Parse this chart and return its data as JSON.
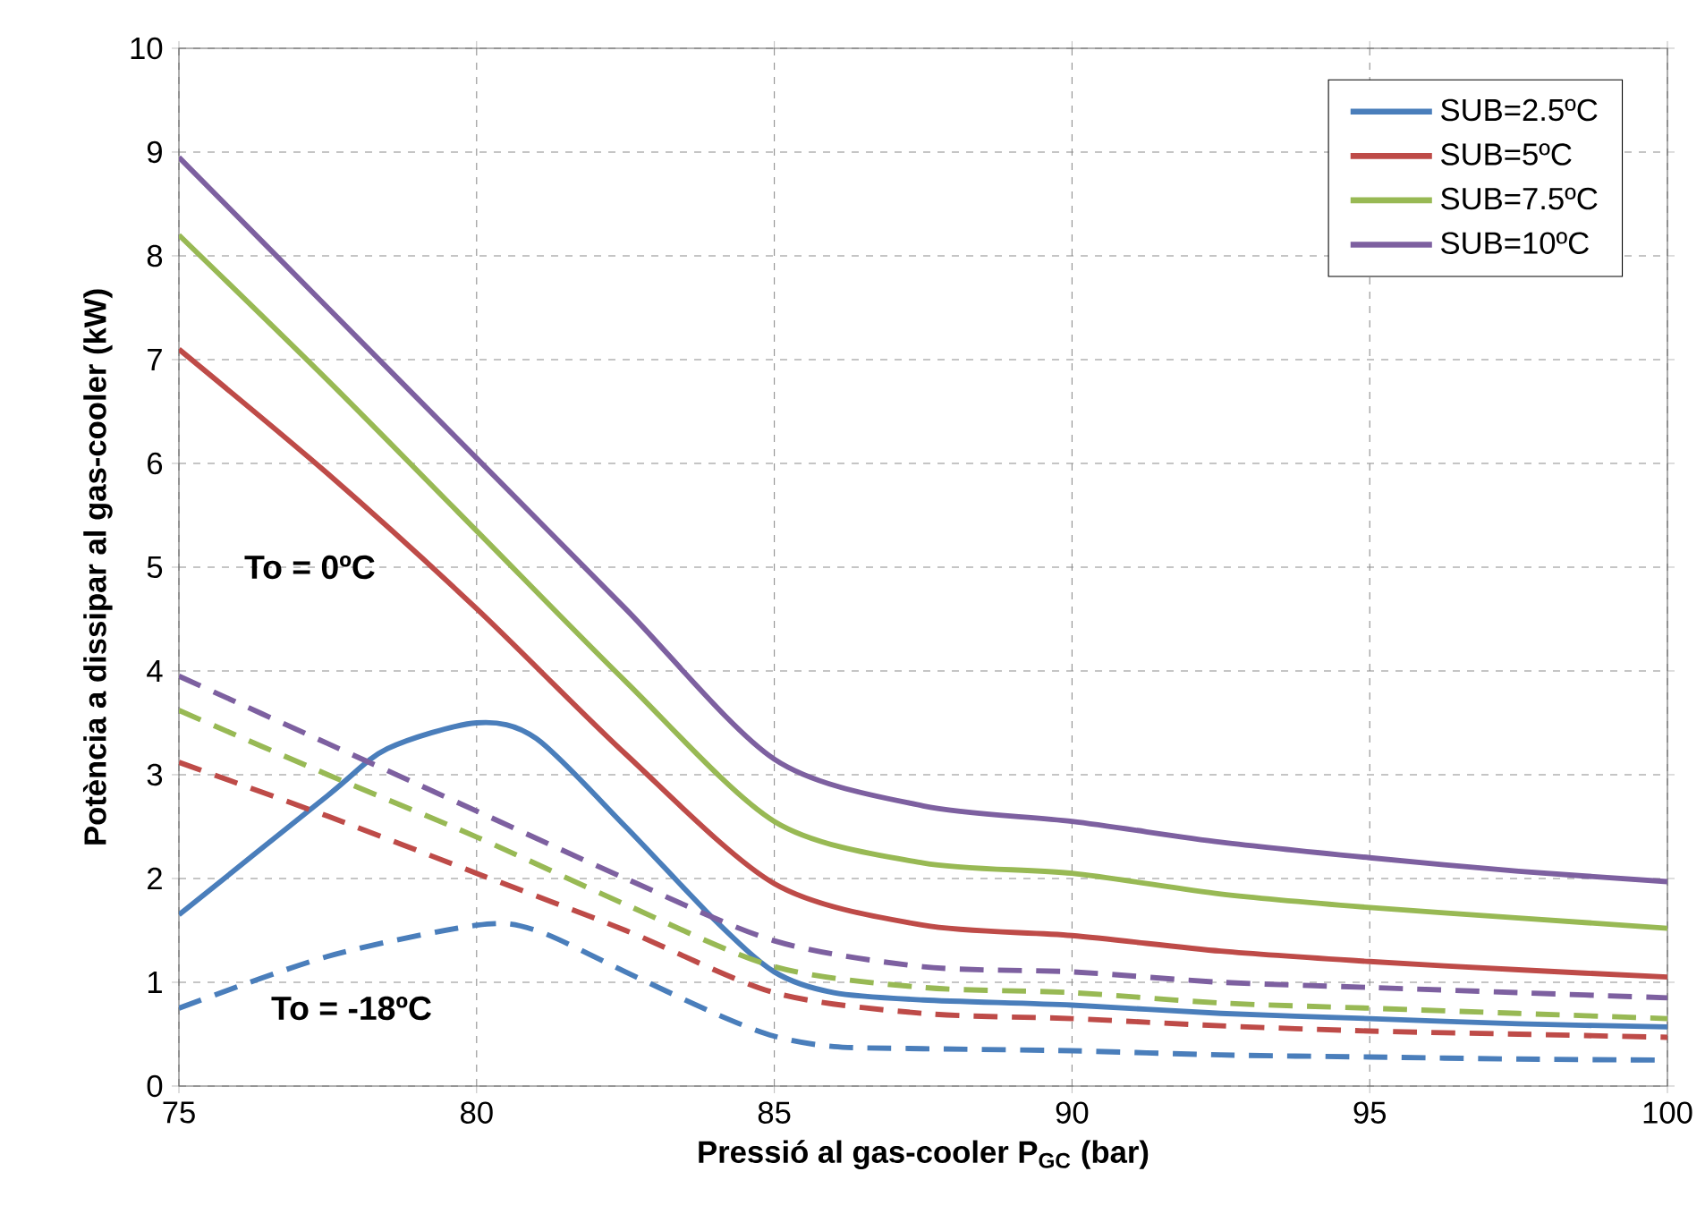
{
  "chart_data": {
    "type": "line",
    "xlabel": "Pressió al gas-cooler P$_{GC}$ (bar)",
    "ylabel": "Potència a dissipar al gas-cooler (kW)",
    "xlim": [
      75,
      100
    ],
    "ylim": [
      0,
      10
    ],
    "xticks": [
      75,
      80,
      85,
      90,
      95,
      100
    ],
    "yticks": [
      0,
      1,
      2,
      3,
      4,
      5,
      6,
      7,
      8,
      9,
      10
    ],
    "grid": true,
    "legend": "top right",
    "marker": "none",
    "annotations": [
      "To = 0ºC",
      "To = -18ºC"
    ],
    "series": [
      {
        "name": "SUB=2.5ºC",
        "color": "#4a7ebb",
        "line_style": "solid",
        "x": [
          75,
          77.5,
          78.5,
          80,
          81,
          82.5,
          84,
          85,
          86,
          87.5,
          90,
          92.5,
          95,
          97.5,
          100
        ],
        "values": [
          1.65,
          2.8,
          3.25,
          3.5,
          3.35,
          2.5,
          1.6,
          1.1,
          0.9,
          0.83,
          0.78,
          0.7,
          0.65,
          0.6,
          0.57
        ]
      },
      {
        "name": "SUB=5ºC",
        "color": "#be4b48",
        "line_style": "solid",
        "x": [
          75,
          77.5,
          80,
          82.5,
          85,
          87.5,
          90,
          92.5,
          95,
          97.5,
          100
        ],
        "values": [
          7.1,
          5.9,
          4.6,
          3.2,
          1.95,
          1.55,
          1.45,
          1.3,
          1.2,
          1.12,
          1.05
        ]
      },
      {
        "name": "SUB=7.5ºC",
        "color": "#98b954",
        "line_style": "solid",
        "x": [
          75,
          77.5,
          80,
          82.5,
          85,
          87.5,
          90,
          92.5,
          95,
          97.5,
          100
        ],
        "values": [
          8.2,
          6.8,
          5.35,
          3.9,
          2.55,
          2.15,
          2.05,
          1.85,
          1.72,
          1.62,
          1.52
        ]
      },
      {
        "name": "SUB=10ºC",
        "color": "#7d60a0",
        "line_style": "solid",
        "x": [
          75,
          77.5,
          80,
          82.5,
          85,
          87.5,
          90,
          92.5,
          95,
          97.5,
          100
        ],
        "values": [
          8.95,
          7.5,
          6.05,
          4.6,
          3.15,
          2.7,
          2.55,
          2.35,
          2.2,
          2.07,
          1.97
        ]
      },
      {
        "color": "#4a7ebb",
        "line_style": "dashed",
        "x": [
          75,
          77.5,
          80,
          81,
          82.5,
          84,
          85,
          86,
          87.5,
          90,
          92.5,
          95,
          97.5,
          100
        ],
        "values": [
          0.75,
          1.25,
          1.55,
          1.5,
          1.1,
          0.7,
          0.48,
          0.38,
          0.36,
          0.34,
          0.3,
          0.28,
          0.26,
          0.25
        ]
      },
      {
        "color": "#be4b48",
        "line_style": "dashed",
        "x": [
          75,
          77.5,
          80,
          82.5,
          85,
          87.5,
          90,
          92.5,
          95,
          97.5,
          100
        ],
        "values": [
          3.12,
          2.6,
          2.05,
          1.5,
          0.9,
          0.7,
          0.65,
          0.58,
          0.53,
          0.5,
          0.47
        ]
      },
      {
        "color": "#98b954",
        "line_style": "dashed",
        "x": [
          75,
          77.5,
          80,
          82.5,
          85,
          87.5,
          90,
          92.5,
          95,
          97.5,
          100
        ],
        "values": [
          3.62,
          3.0,
          2.4,
          1.75,
          1.15,
          0.95,
          0.9,
          0.8,
          0.75,
          0.7,
          0.65
        ]
      },
      {
        "color": "#7d60a0",
        "line_style": "dashed",
        "x": [
          75,
          77.5,
          80,
          82.5,
          85,
          87.5,
          90,
          92.5,
          95,
          97.5,
          100
        ],
        "values": [
          3.95,
          3.3,
          2.65,
          2.0,
          1.4,
          1.15,
          1.1,
          1.0,
          0.95,
          0.9,
          0.85
        ]
      }
    ]
  }
}
